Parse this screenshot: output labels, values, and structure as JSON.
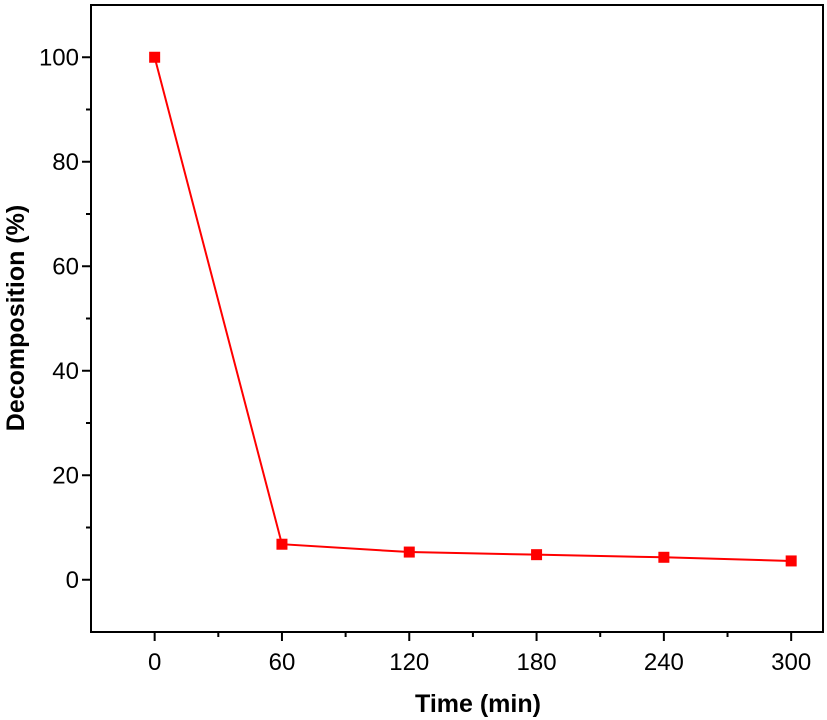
{
  "chart_data": {
    "type": "line",
    "title": "",
    "xlabel": "Time (min)",
    "ylabel": "Decomposition (%)",
    "xlim": [
      -30,
      315
    ],
    "ylim": [
      -10,
      110
    ],
    "x_ticks": [
      0,
      60,
      120,
      180,
      240,
      300
    ],
    "y_ticks": [
      0,
      20,
      40,
      60,
      80,
      100
    ],
    "grid": false,
    "legend": "none",
    "series": [
      {
        "color": "#ff0000",
        "marker": "square",
        "x": [
          0,
          60,
          120,
          180,
          240,
          300
        ],
        "y": [
          100,
          6.8,
          5.3,
          4.8,
          4.3,
          3.6
        ]
      }
    ]
  }
}
